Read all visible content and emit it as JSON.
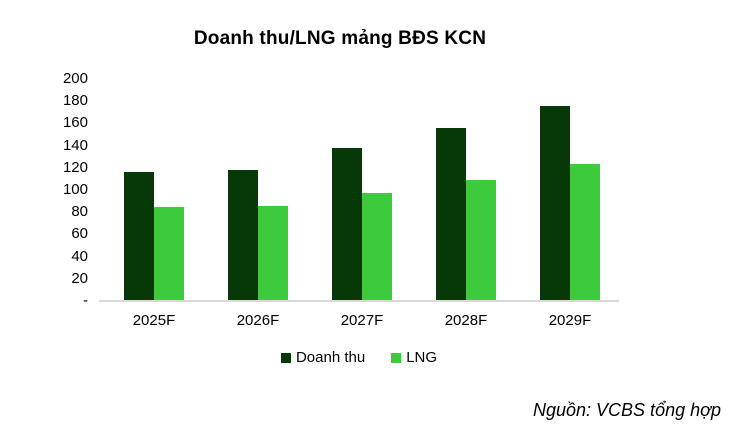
{
  "source_note": "Nguồn: VCBS tổng hợp",
  "colors": {
    "doanh_thu": "#073807",
    "lng": "#3dcb3d",
    "axis_line": "#d9d9d9",
    "text": "#000000"
  },
  "chart_data": {
    "type": "bar",
    "title": "Doanh thu/LNG mảng BĐS KCN",
    "categories": [
      "2025F",
      "2026F",
      "2027F",
      "2028F",
      "2029F"
    ],
    "series": [
      {
        "name": "Doanh thu",
        "color": "#073807",
        "values": [
          116,
          118,
          138,
          156,
          176
        ]
      },
      {
        "name": "LNG",
        "color": "#3dcb3d",
        "values": [
          85,
          86,
          97,
          109,
          123
        ]
      }
    ],
    "xlabel": "",
    "ylabel": "",
    "ylim": [
      0,
      200
    ],
    "ytick_step": 20,
    "yticks": [
      {
        "value": 0,
        "label": "-"
      },
      {
        "value": 20,
        "label": "20"
      },
      {
        "value": 40,
        "label": "40"
      },
      {
        "value": 60,
        "label": "60"
      },
      {
        "value": 80,
        "label": "80"
      },
      {
        "value": 100,
        "label": "100"
      },
      {
        "value": 120,
        "label": "120"
      },
      {
        "value": 140,
        "label": "140"
      },
      {
        "value": 160,
        "label": "160"
      },
      {
        "value": 180,
        "label": "180"
      },
      {
        "value": 200,
        "label": "200"
      }
    ],
    "grid": false,
    "legend_position": "bottom"
  }
}
